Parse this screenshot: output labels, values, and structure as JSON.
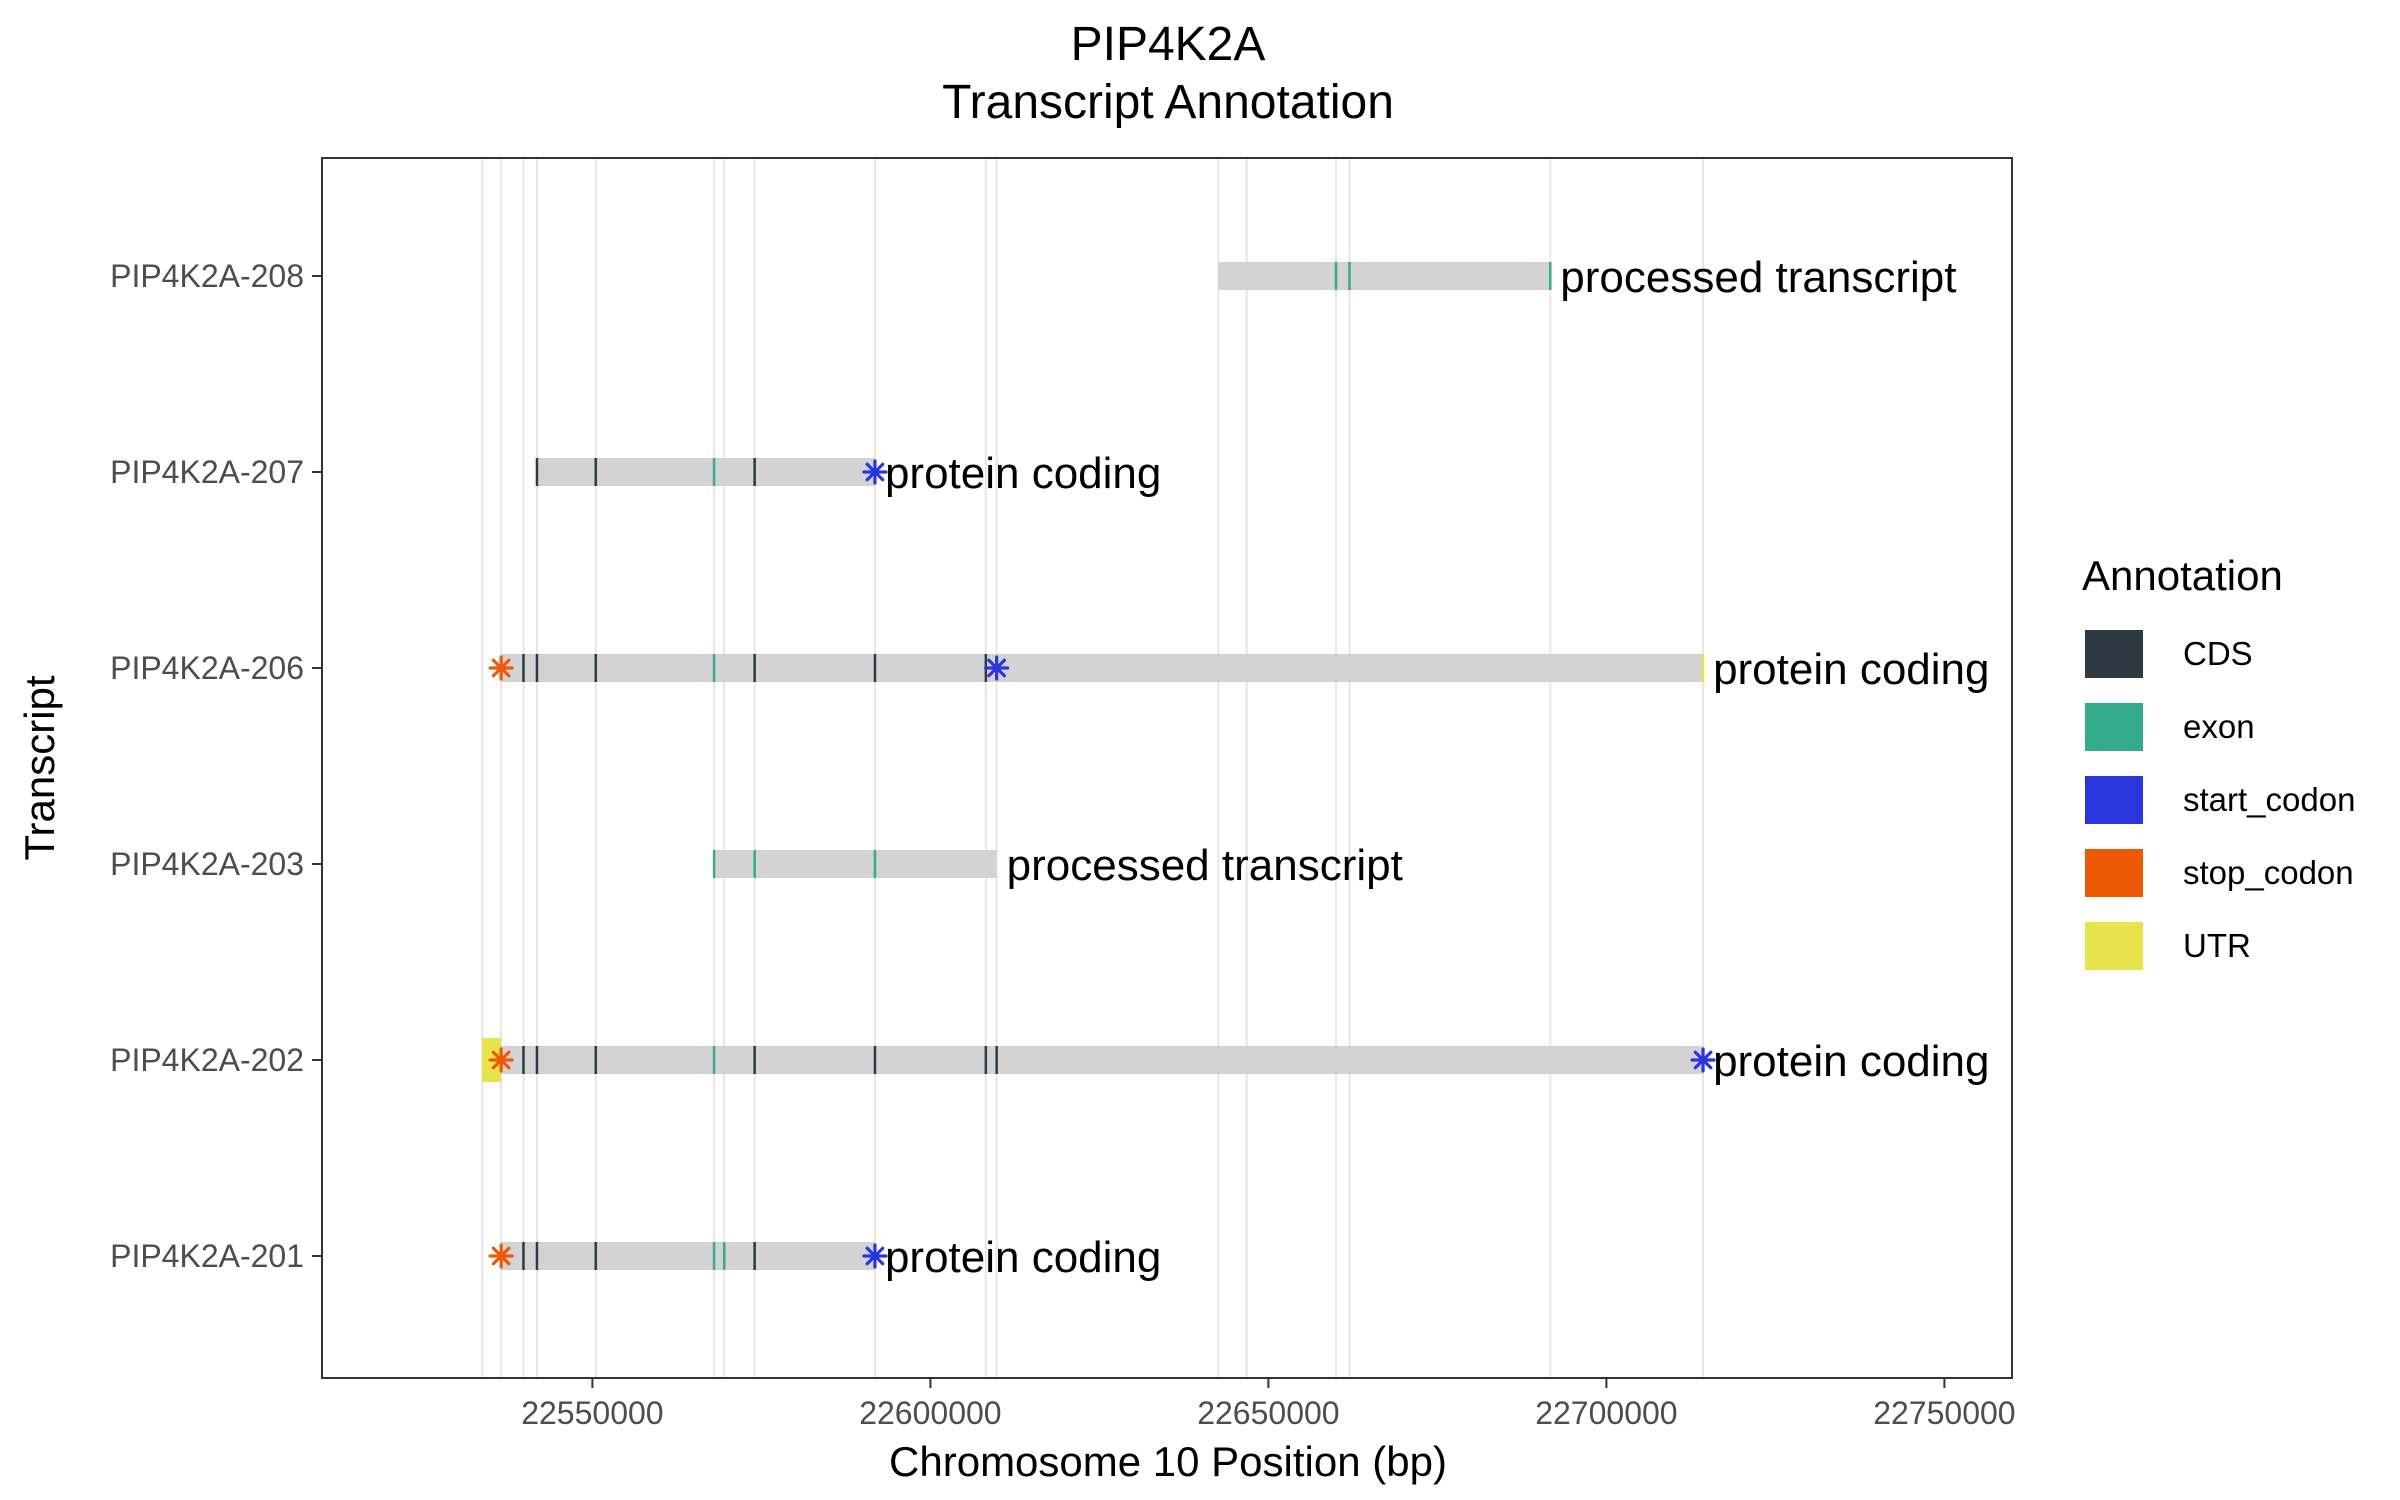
{
  "chart_data": {
    "type": "transcript-annotation",
    "title": "PIP4K2A",
    "subtitle": "Transcript Annotation",
    "xlabel": "Chromosome 10 Position (bp)",
    "ylabel": "Transcript",
    "xlim": [
      22510000,
      22760000
    ],
    "x_ticks": [
      22550000,
      22600000,
      22650000,
      22700000,
      22750000
    ],
    "x_tick_labels": [
      "22550000",
      "22600000",
      "22650000",
      "22700000",
      "22750000"
    ],
    "grid": true,
    "legend_position": "right",
    "legend": {
      "title": "Annotation",
      "items": [
        {
          "label": "CDS",
          "color": "#2d3a42"
        },
        {
          "label": "exon",
          "color": "#35ac8e"
        },
        {
          "label": "start_codon",
          "color": "#2b35dc"
        },
        {
          "label": "stop_codon",
          "color": "#ec5a07"
        },
        {
          "label": "UTR",
          "color": "#e8e34a"
        }
      ]
    },
    "vlines": [
      22533700,
      22536500,
      22539800,
      22541800,
      22550500,
      22568000,
      22569500,
      22574000,
      22591800,
      22608200,
      22609800,
      22642600,
      22646800,
      22660000,
      22662000,
      22691700,
      22714300
    ],
    "transcripts": [
      {
        "name": "PIP4K2A-208",
        "type_label": "processed transcript",
        "start": 22642600,
        "end": 22691700,
        "segments": [
          {
            "pos": 22660000,
            "kind": "exon"
          },
          {
            "pos": 22662000,
            "kind": "exon"
          },
          {
            "pos": 22691700,
            "kind": "exon"
          }
        ],
        "start_codon": null,
        "stop_codon": null,
        "utr": null
      },
      {
        "name": "PIP4K2A-207",
        "type_label": "protein coding",
        "start": 22541800,
        "end": 22591800,
        "segments": [
          {
            "pos": 22541800,
            "kind": "CDS"
          },
          {
            "pos": 22550500,
            "kind": "CDS"
          },
          {
            "pos": 22568000,
            "kind": "exon"
          },
          {
            "pos": 22574000,
            "kind": "CDS"
          }
        ],
        "start_codon": 22591800,
        "stop_codon": null,
        "utr": null
      },
      {
        "name": "PIP4K2A-206",
        "type_label": "protein coding",
        "start": 22536500,
        "end": 22714300,
        "segments": [
          {
            "pos": 22539800,
            "kind": "CDS"
          },
          {
            "pos": 22541800,
            "kind": "CDS"
          },
          {
            "pos": 22550500,
            "kind": "CDS"
          },
          {
            "pos": 22568000,
            "kind": "exon"
          },
          {
            "pos": 22574000,
            "kind": "CDS"
          },
          {
            "pos": 22591800,
            "kind": "CDS"
          },
          {
            "pos": 22608200,
            "kind": "CDS"
          },
          {
            "pos": 22714300,
            "kind": "UTR"
          }
        ],
        "start_codon": 22609800,
        "stop_codon": 22536500,
        "utr": null
      },
      {
        "name": "PIP4K2A-203",
        "type_label": "processed transcript",
        "start": 22568000,
        "end": 22609800,
        "segments": [
          {
            "pos": 22568000,
            "kind": "exon"
          },
          {
            "pos": 22574000,
            "kind": "exon"
          },
          {
            "pos": 22591800,
            "kind": "exon"
          }
        ],
        "start_codon": null,
        "stop_codon": null,
        "utr": null
      },
      {
        "name": "PIP4K2A-202",
        "type_label": "protein coding",
        "start": 22536500,
        "end": 22714300,
        "segments": [
          {
            "pos": 22539800,
            "kind": "CDS"
          },
          {
            "pos": 22541800,
            "kind": "CDS"
          },
          {
            "pos": 22550500,
            "kind": "CDS"
          },
          {
            "pos": 22568000,
            "kind": "exon"
          },
          {
            "pos": 22574000,
            "kind": "CDS"
          },
          {
            "pos": 22591800,
            "kind": "CDS"
          },
          {
            "pos": 22608200,
            "kind": "CDS"
          },
          {
            "pos": 22609800,
            "kind": "CDS"
          }
        ],
        "start_codon": 22714300,
        "stop_codon": 22536500,
        "utr": [
          22533700,
          22536500
        ]
      },
      {
        "name": "PIP4K2A-201",
        "type_label": "protein coding",
        "start": 22536500,
        "end": 22591800,
        "segments": [
          {
            "pos": 22539800,
            "kind": "CDS"
          },
          {
            "pos": 22541800,
            "kind": "CDS"
          },
          {
            "pos": 22550500,
            "kind": "CDS"
          },
          {
            "pos": 22568000,
            "kind": "exon"
          },
          {
            "pos": 22569500,
            "kind": "exon"
          },
          {
            "pos": 22574000,
            "kind": "CDS"
          }
        ],
        "start_codon": 22591800,
        "stop_codon": 22536500,
        "utr": null
      }
    ]
  }
}
